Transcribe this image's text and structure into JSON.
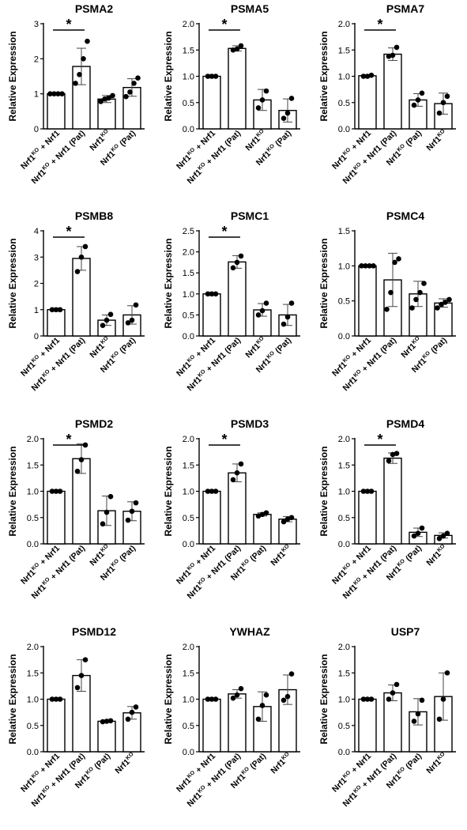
{
  "chart_data": [
    {
      "type": "bar",
      "title": "PSMA2",
      "ylabel": "Relative Expression",
      "ylim": [
        0,
        3
      ],
      "yticks": [
        "0",
        "1",
        "2",
        "3"
      ],
      "categories": [
        [
          "Nrf1",
          "KO",
          " + Nrf1",
          ""
        ],
        [
          "Nrf1",
          "KO",
          " + Nrf1 (Pat)",
          ""
        ],
        [
          "Nrf1",
          "KO",
          "",
          ""
        ],
        [
          "Nrf1",
          "KO",
          " (Pat)",
          ""
        ]
      ],
      "values": [
        1.0,
        1.78,
        0.85,
        1.18
      ],
      "errors": [
        0.0,
        0.52,
        0.1,
        0.25
      ],
      "points": [
        [
          1.0,
          1.0,
          1.0,
          1.0
        ],
        [
          1.3,
          1.55,
          2.0,
          2.5
        ],
        [
          0.78,
          0.85,
          0.88,
          0.95
        ],
        [
          0.92,
          1.05,
          1.3,
          1.45
        ]
      ],
      "significance": {
        "label": "*",
        "between": [
          0,
          1
        ]
      }
    },
    {
      "type": "bar",
      "title": "PSMA5",
      "ylabel": "Relative Expression",
      "ylim": [
        0,
        2
      ],
      "yticks": [
        "0.0",
        "0.5",
        "1.0",
        "1.5",
        "2.0"
      ],
      "categories": [
        [
          "Nrf1",
          "KO",
          " + Nrf1",
          ""
        ],
        [
          "Nrf1",
          "KO",
          " + Nrf1 (Pat)",
          ""
        ],
        [
          "Nrf1",
          "KO",
          "",
          ""
        ],
        [
          "Nrf1",
          "KO",
          " (Pat)",
          ""
        ]
      ],
      "values": [
        1.0,
        1.53,
        0.55,
        0.35
      ],
      "errors": [
        0.0,
        0.05,
        0.2,
        0.22
      ],
      "points": [
        [
          1.0,
          1.0,
          1.0
        ],
        [
          1.5,
          1.52,
          1.58
        ],
        [
          0.4,
          0.55,
          0.72
        ],
        [
          0.2,
          0.3,
          0.58
        ]
      ],
      "significance": {
        "label": "*",
        "between": [
          0,
          1
        ]
      }
    },
    {
      "type": "bar",
      "title": "PSMA7",
      "ylabel": "Relative Expression",
      "ylim": [
        0,
        2
      ],
      "yticks": [
        "0.0",
        "0.5",
        "1.0",
        "1.5",
        "2.0"
      ],
      "categories": [
        [
          "Nrf1",
          "KO",
          " + Nrf1",
          ""
        ],
        [
          "Nrf1",
          "KO",
          " + Nrf1 (Pat)",
          ""
        ],
        [
          "Nrf1",
          "KO",
          " (Pat)",
          ""
        ],
        [
          "Nrf1",
          "KO",
          "",
          ""
        ]
      ],
      "values": [
        1.01,
        1.42,
        0.55,
        0.48
      ],
      "errors": [
        0.02,
        0.12,
        0.12,
        0.2
      ],
      "points": [
        [
          1.0,
          1.0,
          1.02
        ],
        [
          1.38,
          1.4,
          1.55
        ],
        [
          0.45,
          0.55,
          0.68
        ],
        [
          0.3,
          0.5,
          0.62
        ]
      ],
      "significance": {
        "label": "*",
        "between": [
          0,
          1
        ]
      }
    },
    {
      "type": "bar",
      "title": "PSMB8",
      "ylabel": "Relative Expression",
      "ylim": [
        0,
        4
      ],
      "yticks": [
        "0",
        "1",
        "2",
        "3",
        "4"
      ],
      "categories": [
        [
          "Nrf1",
          "KO",
          " + Nrf1",
          ""
        ],
        [
          "Nrf1",
          "KO",
          " + Nrf1 (Pat)",
          ""
        ],
        [
          "Nrf1",
          "KO",
          "",
          ""
        ],
        [
          "Nrf1",
          "KO",
          " (Pat)",
          ""
        ]
      ],
      "values": [
        1.0,
        2.95,
        0.6,
        0.8
      ],
      "errors": [
        0.0,
        0.45,
        0.2,
        0.35
      ],
      "points": [
        [
          1.0,
          1.0,
          1.0
        ],
        [
          2.45,
          3.0,
          3.4
        ],
        [
          0.4,
          0.6,
          0.82
        ],
        [
          0.5,
          0.6,
          1.18
        ]
      ],
      "significance": {
        "label": "*",
        "between": [
          0,
          1
        ]
      }
    },
    {
      "type": "bar",
      "title": "PSMC1",
      "ylabel": "Relative Expression",
      "ylim": [
        0,
        2.5
      ],
      "yticks": [
        "0.0",
        "0.5",
        "1.0",
        "1.5",
        "2.0",
        "2.5"
      ],
      "categories": [
        [
          "Nrf1",
          "KO",
          " + Nrf1",
          ""
        ],
        [
          "Nrf1",
          "KO",
          " + Nrf1 (Pat)",
          ""
        ],
        [
          "Nrf1",
          "KO",
          "",
          ""
        ],
        [
          "Nrf1",
          "KO",
          " (Pat)",
          ""
        ]
      ],
      "values": [
        1.0,
        1.76,
        0.62,
        0.5
      ],
      "errors": [
        0.0,
        0.15,
        0.15,
        0.25
      ],
      "points": [
        [
          1.0,
          1.0,
          1.0
        ],
        [
          1.62,
          1.75,
          1.9
        ],
        [
          0.5,
          0.6,
          0.78
        ],
        [
          0.28,
          0.45,
          0.78
        ]
      ],
      "significance": {
        "label": "*",
        "between": [
          0,
          1
        ]
      }
    },
    {
      "type": "bar",
      "title": "PSMC4",
      "ylabel": "Relative Expression",
      "ylim": [
        0,
        1.5
      ],
      "yticks": [
        "0.0",
        "0.5",
        "1.0",
        "1.5"
      ],
      "categories": [
        [
          "Nrf1",
          "KO",
          " + Nrf1",
          ""
        ],
        [
          "Nrf1",
          "KO",
          " + Nrf1 (Pat)",
          ""
        ],
        [
          "Nrf1",
          "KO",
          "",
          ""
        ],
        [
          "Nrf1",
          "KO",
          " (Pat)",
          ""
        ]
      ],
      "values": [
        1.0,
        0.8,
        0.6,
        0.47
      ],
      "errors": [
        0.0,
        0.38,
        0.18,
        0.06
      ],
      "points": [
        [
          1.0,
          1.0,
          1.0,
          1.0
        ],
        [
          0.38,
          0.62,
          1.05,
          1.1
        ],
        [
          0.4,
          0.52,
          0.62,
          0.75
        ],
        [
          0.4,
          0.45,
          0.48,
          0.52
        ]
      ],
      "significance": null
    },
    {
      "type": "bar",
      "title": "PSMD2",
      "ylabel": "Relative Expression",
      "ylim": [
        0,
        2
      ],
      "yticks": [
        "0.0",
        "0.5",
        "1.0",
        "1.5",
        "2.0"
      ],
      "categories": [
        [
          "Nrf1",
          "KO",
          " + Nrf1",
          ""
        ],
        [
          "Nrf1",
          "KO",
          " + Nrf1 (Pat)",
          ""
        ],
        [
          "Nrf1",
          "KO",
          "",
          ""
        ],
        [
          "Nrf1",
          "KO",
          " (Pat)",
          ""
        ]
      ],
      "values": [
        1.0,
        1.62,
        0.63,
        0.62
      ],
      "errors": [
        0.0,
        0.28,
        0.28,
        0.18
      ],
      "points": [
        [
          1.0,
          1.0,
          1.0
        ],
        [
          1.38,
          1.6,
          1.88
        ],
        [
          0.38,
          0.6,
          0.9
        ],
        [
          0.45,
          0.62,
          0.78
        ]
      ],
      "significance": {
        "label": "*",
        "between": [
          0,
          1
        ]
      }
    },
    {
      "type": "bar",
      "title": "PSMD3",
      "ylabel": "Relative Expression",
      "ylim": [
        0,
        2
      ],
      "yticks": [
        "0.0",
        "0.5",
        "1.0",
        "1.5",
        "2.0"
      ],
      "categories": [
        [
          "Nrf1",
          "KO",
          " + Nrf1",
          ""
        ],
        [
          "Nrf1",
          "KO",
          " + Nrf1 (Pat)",
          ""
        ],
        [
          "Nrf1",
          "KO",
          " (Pat)",
          ""
        ],
        [
          "Nrf1",
          "KO",
          "",
          ""
        ]
      ],
      "values": [
        1.0,
        1.35,
        0.56,
        0.47
      ],
      "errors": [
        0.0,
        0.17,
        0.03,
        0.05
      ],
      "points": [
        [
          1.0,
          1.0,
          1.0
        ],
        [
          1.22,
          1.35,
          1.52
        ],
        [
          0.53,
          0.56,
          0.59
        ],
        [
          0.42,
          0.47,
          0.5
        ]
      ],
      "significance": {
        "label": "*",
        "between": [
          0,
          1
        ]
      }
    },
    {
      "type": "bar",
      "title": "PSMD4",
      "ylabel": "Relative Expression",
      "ylim": [
        0,
        2
      ],
      "yticks": [
        "0.0",
        "0.5",
        "1.0",
        "1.5",
        "2.0"
      ],
      "categories": [
        [
          "Nrf1",
          "KO",
          " + Nrf1",
          ""
        ],
        [
          "Nrf1",
          "KO",
          " + Nrf1 (Pat)",
          ""
        ],
        [
          "Nrf1",
          "KO",
          " (Pat)",
          ""
        ],
        [
          "Nrf1",
          "KO",
          "",
          ""
        ]
      ],
      "values": [
        1.0,
        1.63,
        0.22,
        0.16
      ],
      "errors": [
        0.0,
        0.1,
        0.08,
        0.05
      ],
      "points": [
        [
          1.0,
          1.0,
          1.0
        ],
        [
          1.58,
          1.7,
          1.72
        ],
        [
          0.15,
          0.2,
          0.3
        ],
        [
          0.1,
          0.15,
          0.2
        ]
      ],
      "significance": {
        "label": "*",
        "between": [
          0,
          1
        ]
      }
    },
    {
      "type": "bar",
      "title": "PSMD12",
      "ylabel": "Relative Expression",
      "ylim": [
        0,
        2
      ],
      "yticks": [
        "0.0",
        "0.5",
        "1.0",
        "1.5",
        "2.0"
      ],
      "categories": [
        [
          "Nrf1",
          "KO",
          " + Nrf1",
          ""
        ],
        [
          "Nrf1",
          "KO",
          " + Nrf1 (Pat)",
          ""
        ],
        [
          "Nrf1",
          "KO",
          " (Pat)",
          ""
        ],
        [
          "Nrf1",
          "KO",
          "",
          ""
        ]
      ],
      "values": [
        1.0,
        1.45,
        0.58,
        0.74
      ],
      "errors": [
        0.0,
        0.3,
        0.02,
        0.12
      ],
      "points": [
        [
          1.0,
          1.0,
          1.0
        ],
        [
          1.22,
          1.45,
          1.75
        ],
        [
          0.57,
          0.58,
          0.59
        ],
        [
          0.62,
          0.75,
          0.85
        ]
      ],
      "significance": null
    },
    {
      "type": "bar",
      "title": "YWHAZ",
      "ylabel": "Relative Expression",
      "ylim": [
        0,
        2
      ],
      "yticks": [
        "0.0",
        "0.5",
        "1.0",
        "1.5",
        "2.0"
      ],
      "categories": [
        [
          "Nrf1",
          "KO",
          " + Nrf1",
          ""
        ],
        [
          "Nrf1",
          "KO",
          " + Nrf1 (Pat)",
          ""
        ],
        [
          "Nrf1",
          "KO",
          " (Pat)",
          ""
        ],
        [
          "Nrf1",
          "KO",
          "",
          ""
        ]
      ],
      "values": [
        1.0,
        1.1,
        0.86,
        1.18
      ],
      "errors": [
        0.0,
        0.08,
        0.28,
        0.28
      ],
      "points": [
        [
          1.0,
          1.0,
          1.0
        ],
        [
          1.02,
          1.08,
          1.2
        ],
        [
          0.62,
          0.88,
          1.08
        ],
        [
          0.98,
          1.05,
          1.48
        ]
      ],
      "significance": null
    },
    {
      "type": "bar",
      "title": "USP7",
      "ylabel": "Relative Expression",
      "ylim": [
        0,
        2
      ],
      "yticks": [
        "0.0",
        "0.5",
        "1.0",
        "1.5",
        "2.0"
      ],
      "categories": [
        [
          "Nrf1",
          "KO",
          " + Nrf1",
          ""
        ],
        [
          "Nrf1",
          "KO",
          " + Nrf1 (Pat)",
          ""
        ],
        [
          "Nrf1",
          "KO",
          " (Pat)",
          ""
        ],
        [
          "Nrf1",
          "KO",
          "",
          ""
        ]
      ],
      "values": [
        1.0,
        1.12,
        0.76,
        1.05
      ],
      "errors": [
        0.0,
        0.15,
        0.25,
        0.45
      ],
      "points": [
        [
          1.0,
          1.0,
          1.0
        ],
        [
          1.0,
          1.12,
          1.28
        ],
        [
          0.58,
          0.72,
          0.98
        ],
        [
          0.62,
          1.0,
          1.5
        ]
      ],
      "significance": null
    }
  ]
}
